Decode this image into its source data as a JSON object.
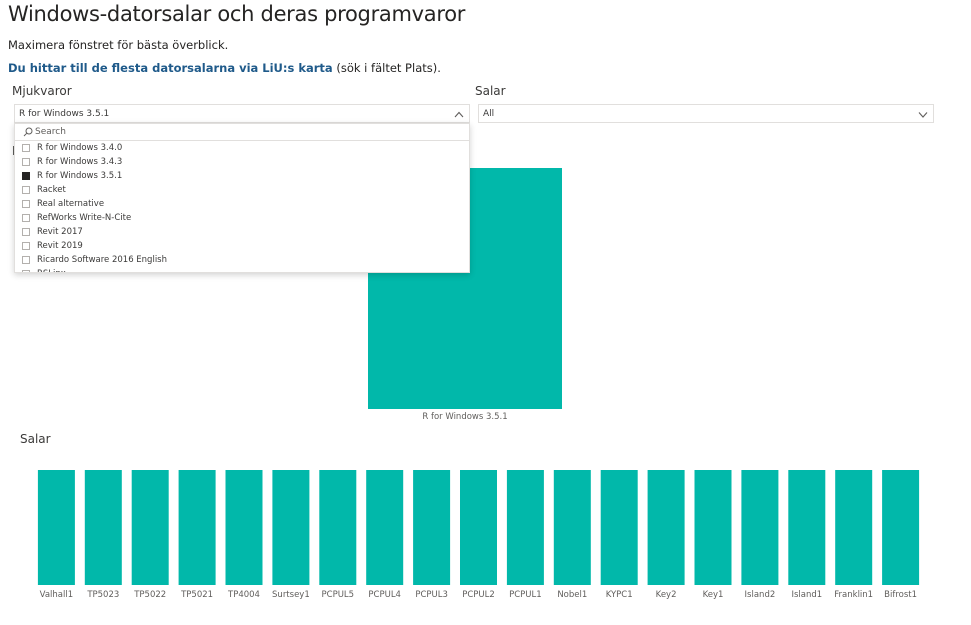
{
  "page": {
    "title": "Windows-datorsalar och deras programvaror",
    "subtitle": "Maximera fönstret för bästa överblick.",
    "link_text": "Du hittar till de flesta datorsalarna via LiU:s karta",
    "link_suffix": " (sök i fältet Plats)."
  },
  "slicers": {
    "software": {
      "label": "Mjukvaror",
      "selected": "R for Windows 3.5.1",
      "search_placeholder": "Search",
      "items": [
        {
          "label": "R for Windows 3.4.0",
          "checked": false
        },
        {
          "label": "R for Windows 3.4.3",
          "checked": false
        },
        {
          "label": "R for Windows 3.5.1",
          "checked": true
        },
        {
          "label": "Racket",
          "checked": false
        },
        {
          "label": "Real alternative",
          "checked": false
        },
        {
          "label": "RefWorks Write-N-Cite",
          "checked": false
        },
        {
          "label": "Revit 2017",
          "checked": false
        },
        {
          "label": "Revit 2019",
          "checked": false
        },
        {
          "label": "Ricardo Software 2016 English",
          "checked": false
        },
        {
          "label": "RSLinx",
          "checked": false
        }
      ]
    },
    "rooms": {
      "label": "Salar",
      "selected": "All"
    }
  },
  "hidden_visual_title_fragment": "M",
  "colors": {
    "bar": "#01b8aa",
    "accent_link": "#1f5a8a"
  },
  "chart_data": [
    {
      "type": "bar",
      "title": "",
      "categories": [
        "R for Windows 3.5.1"
      ],
      "values": [
        1
      ]
    },
    {
      "type": "bar",
      "title": "Salar",
      "categories": [
        "Valhall1",
        "TP5023",
        "TP5022",
        "TP5021",
        "TP4004",
        "Surtsey1",
        "PCPUL5",
        "PCPUL4",
        "PCPUL3",
        "PCPUL2",
        "PCPUL1",
        "Nobel1",
        "KYPC1",
        "Key2",
        "Key1",
        "Island2",
        "Island1",
        "Franklin1",
        "Bifrost1"
      ],
      "values": [
        1,
        1,
        1,
        1,
        1,
        1,
        1,
        1,
        1,
        1,
        1,
        1,
        1,
        1,
        1,
        1,
        1,
        1,
        1
      ]
    }
  ]
}
